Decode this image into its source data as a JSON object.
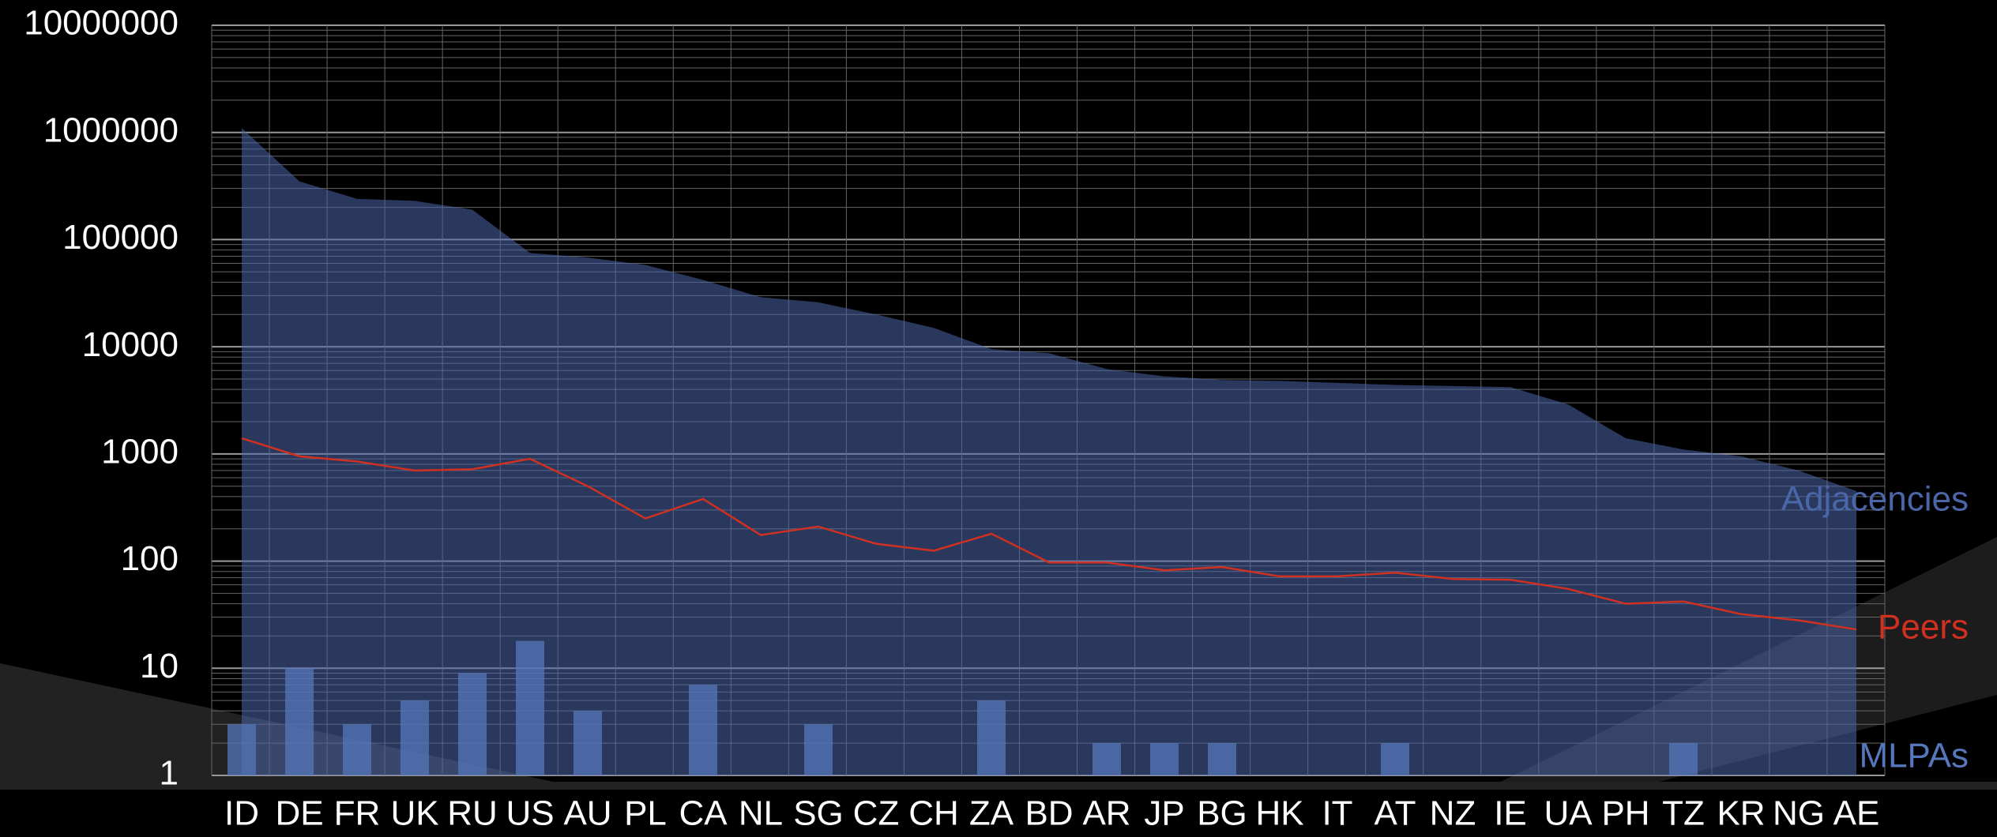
{
  "chart_data": {
    "type": "mixed-log",
    "categories": [
      "ID",
      "DE",
      "FR",
      "UK",
      "RU",
      "US",
      "AU",
      "PL",
      "CA",
      "NL",
      "SG",
      "CZ",
      "CH",
      "ZA",
      "BD",
      "AR",
      "JP",
      "BG",
      "HK",
      "IT",
      "AT",
      "NZ",
      "IE",
      "UA",
      "PH",
      "TZ",
      "KR",
      "NG",
      "AE"
    ],
    "series": [
      {
        "name": "Adjacencies",
        "kind": "area",
        "color": "#4a66a8",
        "values": [
          1100000,
          350000,
          240000,
          230000,
          190000,
          75000,
          68000,
          58000,
          42000,
          29000,
          26000,
          20000,
          15000,
          9500,
          8700,
          6200,
          5300,
          4900,
          4800,
          4600,
          4400,
          4300,
          4200,
          2900,
          1400,
          1100,
          950,
          700,
          450
        ]
      },
      {
        "name": "Peers",
        "kind": "line",
        "color": "#d03020",
        "values": [
          1400,
          950,
          850,
          700,
          720,
          900,
          500,
          250,
          380,
          175,
          210,
          145,
          125,
          180,
          97,
          97,
          82,
          88,
          72,
          72,
          78,
          68,
          67,
          55,
          40,
          42,
          32,
          28,
          23
        ]
      },
      {
        "name": "MLPAs",
        "kind": "bar",
        "color": "#5577bb",
        "values": [
          3,
          10,
          3,
          5,
          9,
          18,
          4,
          null,
          7,
          null,
          3,
          null,
          null,
          5,
          null,
          2,
          2,
          2,
          null,
          null,
          2,
          null,
          null,
          null,
          null,
          2,
          null,
          null,
          null
        ]
      }
    ],
    "log_scale": true,
    "ylim": [
      1,
      10000000
    ],
    "yticks": [
      1,
      10,
      100,
      1000,
      10000,
      100000,
      1000000,
      10000000
    ],
    "grid": true
  }
}
